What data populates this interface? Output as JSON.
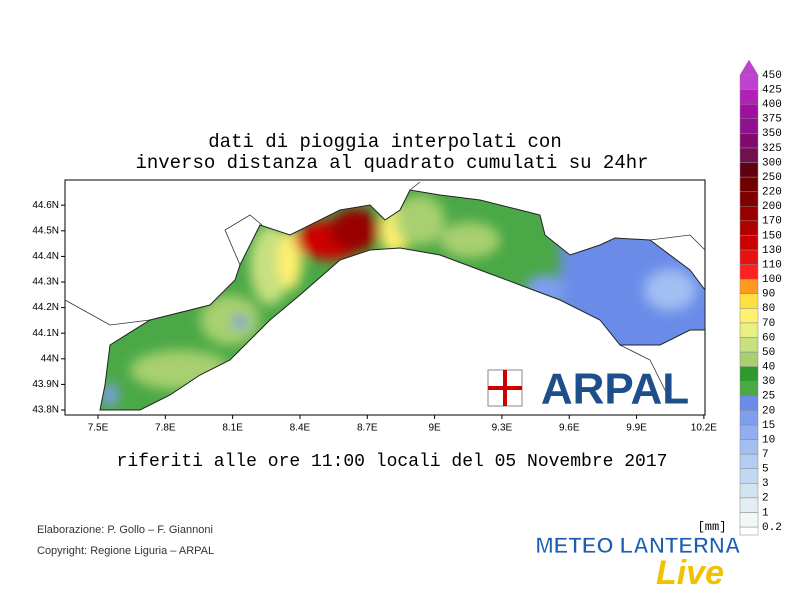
{
  "header": {
    "title_lines": [
      "dati di pioggia interpolati con",
      "inverso distanza al quadrato cumulati su 24hr"
    ]
  },
  "map": {
    "lon_ticks": [
      {
        "value": 7.5,
        "label": "7.5E"
      },
      {
        "value": 7.8,
        "label": "7.8E"
      },
      {
        "value": 8.1,
        "label": "8.1E"
      },
      {
        "value": 8.4,
        "label": "8.4E"
      },
      {
        "value": 8.7,
        "label": "8.7E"
      },
      {
        "value": 9,
        "label": "9E"
      },
      {
        "value": 9.3,
        "label": "9.3E"
      },
      {
        "value": 9.6,
        "label": "9.6E"
      },
      {
        "value": 9.9,
        "label": "9.9E"
      },
      {
        "value": 10.2,
        "label": "10.2E"
      }
    ],
    "lat_ticks": [
      {
        "value": 44.6,
        "label": "44.6N"
      },
      {
        "value": 44.5,
        "label": "44.5N"
      },
      {
        "value": 44.4,
        "label": "44.4N"
      },
      {
        "value": 44.3,
        "label": "44.3N"
      },
      {
        "value": 44.2,
        "label": "44.2N"
      },
      {
        "value": 44.1,
        "label": "44.1N"
      },
      {
        "value": 44,
        "label": "44N"
      },
      {
        "value": 43.9,
        "label": "43.9N"
      },
      {
        "value": 43.8,
        "label": "43.8N"
      }
    ],
    "logo": "ARPAL"
  },
  "colorbar": {
    "unit": "[mm]",
    "levels": [
      0.2,
      1,
      2,
      3,
      5,
      7,
      10,
      15,
      20,
      25,
      30,
      40,
      50,
      60,
      70,
      80,
      90,
      100,
      110,
      130,
      150,
      170,
      200,
      220,
      250,
      300,
      325,
      350,
      375,
      400,
      425,
      450
    ],
    "colors": [
      "#f2f8f8",
      "#e2eef2",
      "#d2e4ee",
      "#c2d8f0",
      "#b2ccf2",
      "#a2bff2",
      "#90aef0",
      "#7e9ef0",
      "#6a8ce8",
      "#4aa846",
      "#2e9a2e",
      "#a8d070",
      "#c8e080",
      "#e8f080",
      "#fff070",
      "#ffe040",
      "#ff9a20",
      "#ff2020",
      "#e81010",
      "#cc0000",
      "#b00000",
      "#980000",
      "#800000",
      "#700000",
      "#600010",
      "#701050",
      "#800a70",
      "#901090",
      "#a010a0",
      "#b020b8",
      "#c040d0"
    ]
  },
  "footer": {
    "subtitle": "riferiti alle ore 11:00 locali del 05 Novembre 2017",
    "credits": [
      "Elaborazione: P. Gollo – F. Giannoni",
      "Copyright: Regione Liguria – ARPAL"
    ],
    "brand": "METEO LANTERNA",
    "brand_script": "Live"
  }
}
